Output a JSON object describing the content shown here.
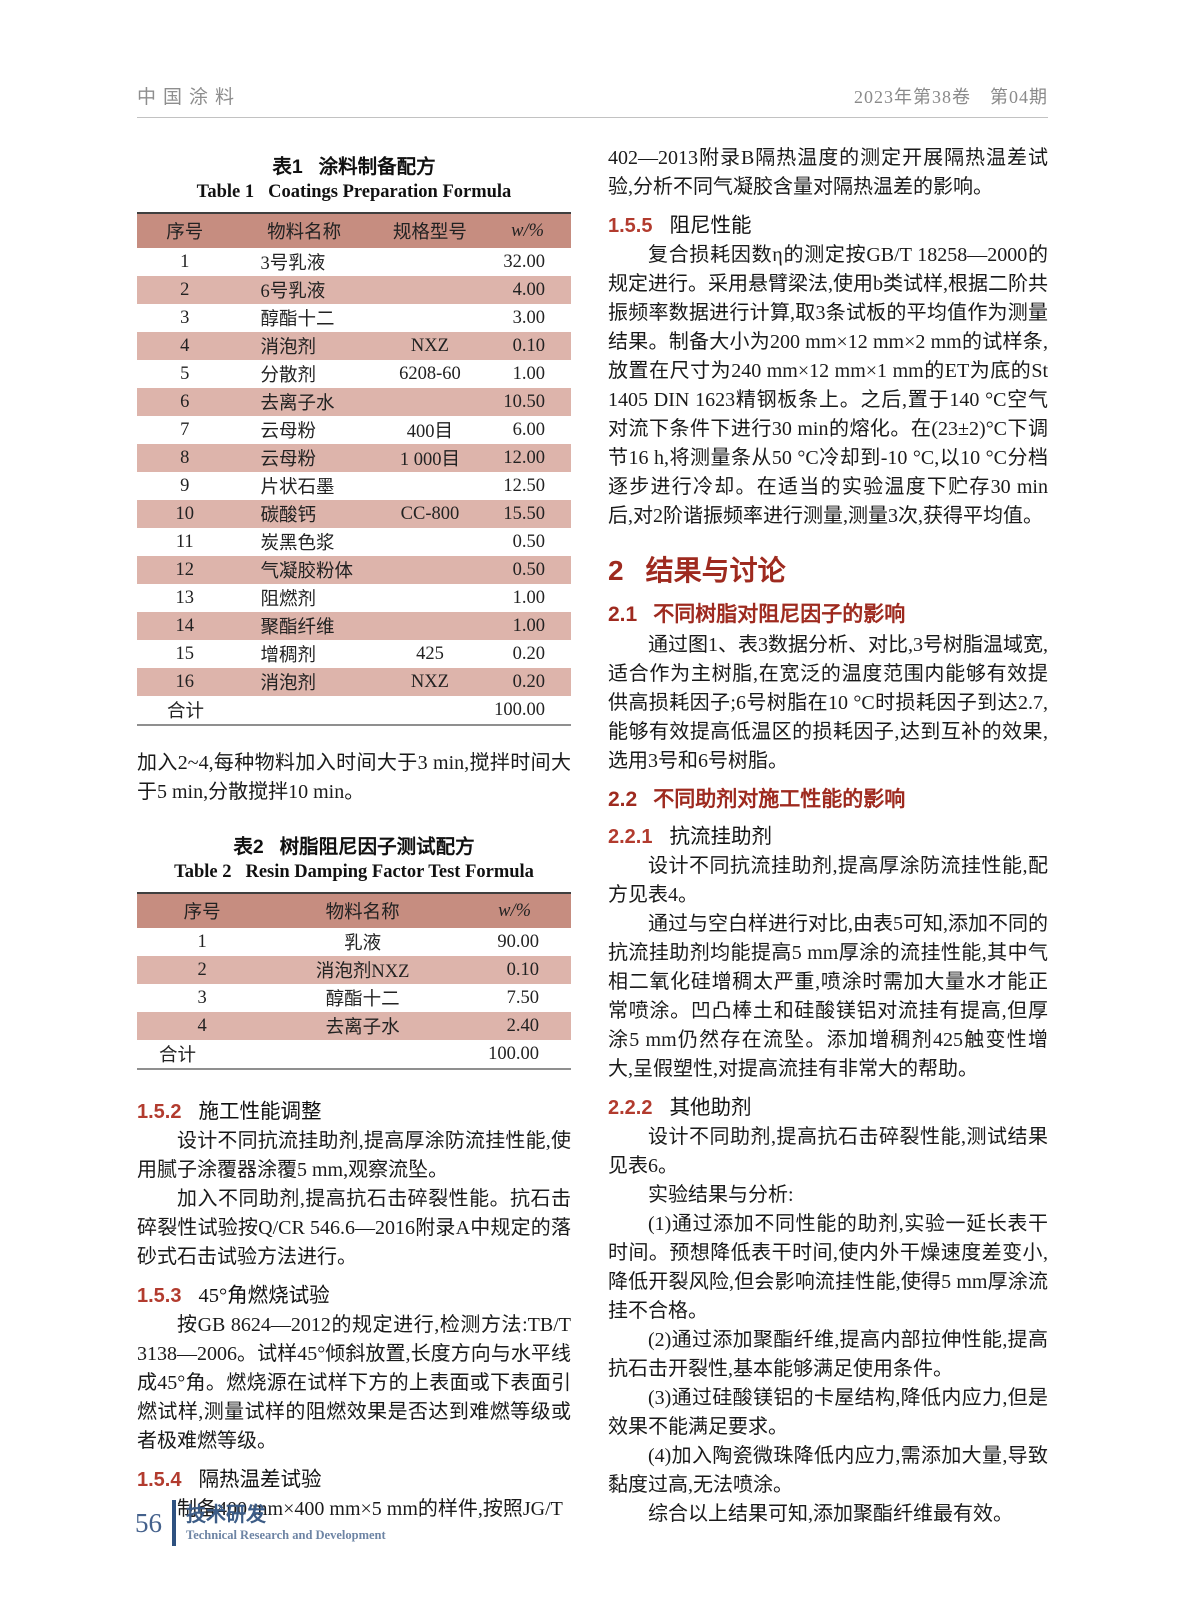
{
  "page_header": {
    "journal": "中国涂料",
    "issue": "2023年第38卷　第04期"
  },
  "table1": {
    "caption_zh_label": "表1",
    "caption_zh_title": "涂料制备配方",
    "caption_en_label": "Table 1",
    "caption_en_title": "Coatings Preparation Formula",
    "headers": [
      "序号",
      "物料名称",
      "规格型号",
      "w/%"
    ],
    "rows": [
      [
        "1",
        "3号乳液",
        "",
        "32.00"
      ],
      [
        "2",
        "6号乳液",
        "",
        "4.00"
      ],
      [
        "3",
        "醇酯十二",
        "",
        "3.00"
      ],
      [
        "4",
        "消泡剂",
        "NXZ",
        "0.10"
      ],
      [
        "5",
        "分散剂",
        "6208-60",
        "1.00"
      ],
      [
        "6",
        "去离子水",
        "",
        "10.50"
      ],
      [
        "7",
        "云母粉",
        "400目",
        "6.00"
      ],
      [
        "8",
        "云母粉",
        "1 000目",
        "12.00"
      ],
      [
        "9",
        "片状石墨",
        "",
        "12.50"
      ],
      [
        "10",
        "碳酸钙",
        "CC-800",
        "15.50"
      ],
      [
        "11",
        "炭黑色浆",
        "",
        "0.50"
      ],
      [
        "12",
        "气凝胶粉体",
        "",
        "0.50"
      ],
      [
        "13",
        "阻燃剂",
        "",
        "1.00"
      ],
      [
        "14",
        "聚酯纤维",
        "",
        "1.00"
      ],
      [
        "15",
        "增稠剂",
        "425",
        "0.20"
      ],
      [
        "16",
        "消泡剂",
        "NXZ",
        "0.20"
      ]
    ],
    "total_label": "合计",
    "total_value": "100.00"
  },
  "table1_note": "加入2~4,每种物料加入时间大于3 min,搅拌时间大于5 min,分散搅拌10 min。",
  "table2": {
    "caption_zh_label": "表2",
    "caption_zh_title": "树脂阻尼因子测试配方",
    "caption_en_label": "Table 2",
    "caption_en_title": "Resin Damping Factor Test Formula",
    "headers": [
      "序号",
      "物料名称",
      "w/%"
    ],
    "rows": [
      [
        "1",
        "乳液",
        "90.00"
      ],
      [
        "2",
        "消泡剂NXZ",
        "0.10"
      ],
      [
        "3",
        "醇酯十二",
        "7.50"
      ],
      [
        "4",
        "去离子水",
        "2.40"
      ]
    ],
    "total_label": "合计",
    "total_value": "100.00"
  },
  "left_sections": {
    "s152": {
      "num": "1.5.2",
      "title": "施工性能调整",
      "p1": "设计不同抗流挂助剂,提高厚涂防流挂性能,使用腻子涂覆器涂覆5 mm,观察流坠。",
      "p2": "加入不同助剂,提高抗石击碎裂性能。抗石击碎裂性试验按Q/CR 546.6—2016附录A中规定的落砂式石击试验方法进行。"
    },
    "s153": {
      "num": "1.5.3",
      "title": "45°角燃烧试验",
      "p1": "按GB 8624—2012的规定进行,检测方法:TB/T 3138—2006。试样45°倾斜放置,长度方向与水平线成45°角。燃烧源在试样下方的上表面或下表面引燃试样,测量试样的阻燃效果是否达到难燃等级或者极难燃等级。"
    },
    "s154": {
      "num": "1.5.4",
      "title": "隔热温差试验",
      "p1": "制备400 mm×400 mm×5 mm的样件,按照JG/T"
    }
  },
  "right_sections": {
    "cont_para": "402—2013附录B隔热温度的测定开展隔热温差试验,分析不同气凝胶含量对隔热温差的影响。",
    "s155": {
      "num": "1.5.5",
      "title": "阻尼性能",
      "p1": "复合损耗因数η的测定按GB/T 18258—2000的规定进行。采用悬臂梁法,使用b类试样,根据二阶共振频率数据进行计算,取3条试板的平均值作为测量结果。制备大小为200 mm×12 mm×2 mm的试样条,放置在尺寸为240 mm×12 mm×1 mm的ET为底的St 1405 DIN 1623精钢板条上。之后,置于140 °C空气对流下条件下进行30 min的熔化。在(23±2)°C下调节16 h,将测量条从50 °C冷却到-10 °C,以10 °C分档逐步进行冷却。在适当的实验温度下贮存30 min后,对2阶谐振频率进行测量,测量3次,获得平均值。"
    },
    "s2": {
      "num": "2",
      "title": "结果与讨论"
    },
    "s21": {
      "num": "2.1",
      "title": "不同树脂对阻尼因子的影响",
      "p1": "通过图1、表3数据分析、对比,3号树脂温域宽,适合作为主树脂,在宽泛的温度范围内能够有效提供高损耗因子;6号树脂在10 °C时损耗因子到达2.7,能够有效提高低温区的损耗因子,达到互补的效果,选用3号和6号树脂。"
    },
    "s22": {
      "num": "2.2",
      "title": "不同助剂对施工性能的影响"
    },
    "s221": {
      "num": "2.2.1",
      "title": "抗流挂助剂",
      "p1": "设计不同抗流挂助剂,提高厚涂防流挂性能,配方见表4。",
      "p2": "通过与空白样进行对比,由表5可知,添加不同的抗流挂助剂均能提高5 mm厚涂的流挂性能,其中气相二氧化硅增稠太严重,喷涂时需加大量水才能正常喷涂。凹凸棒土和硅酸镁铝对流挂有提高,但厚涂5 mm仍然存在流坠。添加增稠剂425触变性增大,呈假塑性,对提高流挂有非常大的帮助。"
    },
    "s222": {
      "num": "2.2.2",
      "title": "其他助剂",
      "p1": "设计不同助剂,提高抗石击碎裂性能,测试结果见表6。",
      "p2": "实验结果与分析:",
      "p3": "(1)通过添加不同性能的助剂,实验一延长表干时间。预想降低表干时间,使内外干燥速度差变小,降低开裂风险,但会影响流挂性能,使得5 mm厚涂流挂不合格。",
      "p4": "(2)通过添加聚酯纤维,提高内部拉伸性能,提高抗石击开裂性,基本能够满足使用条件。",
      "p5": "(3)通过硅酸镁铝的卡屋结构,降低内应力,但是效果不能满足要求。",
      "p6": "(4)加入陶瓷微珠降低内应力,需添加大量,导致黏度过高,无法喷涂。",
      "p7": "综合以上结果可知,添加聚酯纤维最有效。"
    }
  },
  "footer": {
    "page_number": "56",
    "label_zh": "技术研发",
    "label_en": "Technical Research and Development"
  },
  "colors": {
    "table_header_bg": "#c68d80",
    "table_alt_row_bg": "#ddb4ab",
    "heading_red": "#9e2a1f",
    "section_num_red": "#b23b2e",
    "footer_blue": "#3c5c86",
    "header_gray": "#8e8e8e"
  }
}
